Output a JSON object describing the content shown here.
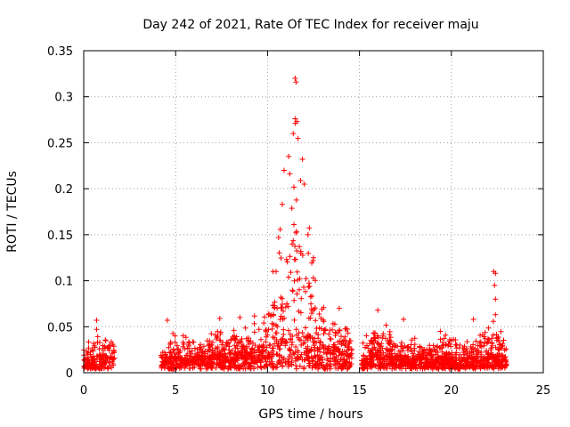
{
  "chart_data": {
    "type": "scatter",
    "title": "Day 242 of 2021, Rate Of TEC Index for receiver maju",
    "xlabel": "GPS time / hours",
    "ylabel": "ROTI / TECUs",
    "xlim": [
      0,
      25
    ],
    "ylim": [
      0,
      0.35
    ],
    "xticks": [
      0,
      5,
      10,
      15,
      20,
      25
    ],
    "yticks": [
      0,
      0.05,
      0.1,
      0.15,
      0.2,
      0.25,
      0.3,
      0.35
    ],
    "grid": true,
    "marker": "+",
    "color": "#ff0000",
    "series": [
      {
        "name": "ROTI",
        "envelope": [
          {
            "x": 0.0,
            "base": 0.012,
            "upper": 0.03
          },
          {
            "x": 0.5,
            "base": 0.014,
            "upper": 0.04
          },
          {
            "x": 0.7,
            "base": 0.018,
            "upper": 0.057
          },
          {
            "x": 1.0,
            "base": 0.015,
            "upper": 0.04
          },
          {
            "x": 1.7,
            "base": 0.014,
            "upper": 0.04
          },
          {
            "x": 4.2,
            "base": 0.012,
            "upper": 0.028
          },
          {
            "x": 4.5,
            "base": 0.014,
            "upper": 0.055
          },
          {
            "x": 5.0,
            "base": 0.014,
            "upper": 0.04
          },
          {
            "x": 6.0,
            "base": 0.015,
            "upper": 0.045
          },
          {
            "x": 7.5,
            "base": 0.016,
            "upper": 0.045
          },
          {
            "x": 8.3,
            "base": 0.018,
            "upper": 0.055
          },
          {
            "x": 9.0,
            "base": 0.02,
            "upper": 0.05
          },
          {
            "x": 10.0,
            "base": 0.025,
            "upper": 0.09
          },
          {
            "x": 10.5,
            "base": 0.03,
            "upper": 0.145
          },
          {
            "x": 11.0,
            "base": 0.035,
            "upper": 0.19
          },
          {
            "x": 11.5,
            "base": 0.04,
            "upper": 0.28
          },
          {
            "x": 12.0,
            "base": 0.04,
            "upper": 0.21
          },
          {
            "x": 12.5,
            "base": 0.035,
            "upper": 0.13
          },
          {
            "x": 13.0,
            "base": 0.03,
            "upper": 0.08
          },
          {
            "x": 13.5,
            "base": 0.025,
            "upper": 0.055
          },
          {
            "x": 14.0,
            "base": 0.02,
            "upper": 0.065
          },
          {
            "x": 14.6,
            "base": 0.015,
            "upper": 0.035
          },
          {
            "x": 15.1,
            "base": 0.01,
            "upper": 0.03
          },
          {
            "x": 16.0,
            "base": 0.016,
            "upper": 0.065
          },
          {
            "x": 17.0,
            "base": 0.014,
            "upper": 0.04
          },
          {
            "x": 18.0,
            "base": 0.014,
            "upper": 0.04
          },
          {
            "x": 19.0,
            "base": 0.012,
            "upper": 0.03
          },
          {
            "x": 19.5,
            "base": 0.014,
            "upper": 0.045
          },
          {
            "x": 20.5,
            "base": 0.013,
            "upper": 0.04
          },
          {
            "x": 21.5,
            "base": 0.014,
            "upper": 0.04
          },
          {
            "x": 22.3,
            "base": 0.016,
            "upper": 0.06
          },
          {
            "x": 23.0,
            "base": 0.014,
            "upper": 0.035
          }
        ],
        "gaps": [
          [
            1.7,
            4.2
          ],
          [
            14.6,
            15.1
          ]
        ],
        "peaks": [
          {
            "x": 0.7,
            "y": 0.057
          },
          {
            "x": 4.55,
            "y": 0.057
          },
          {
            "x": 7.4,
            "y": 0.059
          },
          {
            "x": 8.5,
            "y": 0.06
          },
          {
            "x": 10.3,
            "y": 0.11
          },
          {
            "x": 10.6,
            "y": 0.147
          },
          {
            "x": 10.8,
            "y": 0.183
          },
          {
            "x": 10.9,
            "y": 0.22
          },
          {
            "x": 11.15,
            "y": 0.235
          },
          {
            "x": 11.4,
            "y": 0.26
          },
          {
            "x": 11.5,
            "y": 0.32
          },
          {
            "x": 11.55,
            "y": 0.316
          },
          {
            "x": 11.5,
            "y": 0.276
          },
          {
            "x": 11.6,
            "y": 0.273
          },
          {
            "x": 11.9,
            "y": 0.232
          },
          {
            "x": 12.0,
            "y": 0.205
          },
          {
            "x": 12.2,
            "y": 0.15
          },
          {
            "x": 12.5,
            "y": 0.125
          },
          {
            "x": 13.9,
            "y": 0.07
          },
          {
            "x": 16.0,
            "y": 0.068
          },
          {
            "x": 17.4,
            "y": 0.058
          },
          {
            "x": 19.4,
            "y": 0.045
          },
          {
            "x": 21.2,
            "y": 0.058
          },
          {
            "x": 22.3,
            "y": 0.11
          },
          {
            "x": 22.4,
            "y": 0.108
          },
          {
            "x": 22.35,
            "y": 0.095
          },
          {
            "x": 22.4,
            "y": 0.08
          },
          {
            "x": 22.4,
            "y": 0.063
          }
        ]
      }
    ]
  }
}
